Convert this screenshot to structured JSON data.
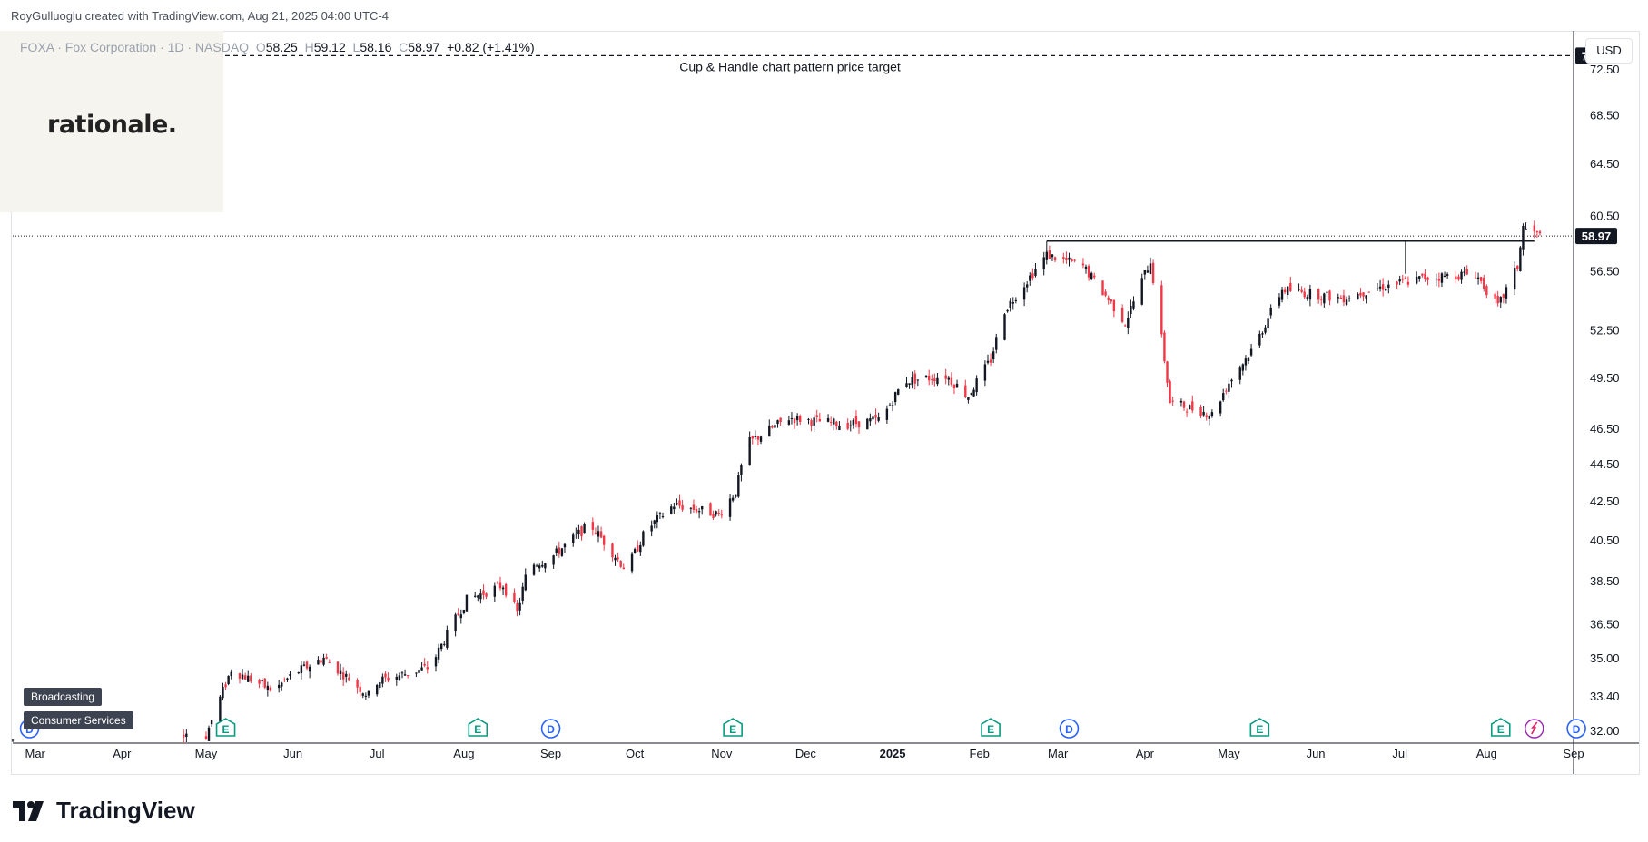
{
  "header": {
    "caption": "RoyGulluoglu created with TradingView.com, Aug 21, 2025 04:00 UTC-4"
  },
  "legend": {
    "symbol_line": "FOXA · Fox Corporation · 1D · NASDAQ",
    "open_label": "O",
    "open": "58.25",
    "high_label": "H",
    "high": "59.12",
    "low_label": "L",
    "low": "58.16",
    "close_label": "C",
    "close": "58.97",
    "change": "+0.82 (+1.41%)"
  },
  "logo": {
    "text": "rationale."
  },
  "currency_button": "USD",
  "industry_tags": [
    "Broadcasting",
    "Consumer Services"
  ],
  "brand": {
    "name": "TradingView"
  },
  "colors": {
    "up": "#131722",
    "down": "#f23645",
    "line": "#131722",
    "target_badge": "#131722"
  },
  "chart_data": {
    "type": "candlestick",
    "symbol": "FOXA",
    "interval": "1D",
    "y_axis": {
      "ticks": [
        "32.00",
        "33.40",
        "35.00",
        "36.50",
        "38.50",
        "40.50",
        "42.50",
        "44.50",
        "46.50",
        "49.50",
        "52.50",
        "56.50",
        "60.50",
        "64.50",
        "68.50",
        "72.50"
      ],
      "scale": "log",
      "range": [
        31.5,
        76
      ]
    },
    "x_axis": {
      "ticks": [
        {
          "label": "Mar",
          "date": "2024-03-01"
        },
        {
          "label": "Apr",
          "date": "2024-04-01"
        },
        {
          "label": "May",
          "date": "2024-05-01"
        },
        {
          "label": "Jun",
          "date": "2024-06-01"
        },
        {
          "label": "Jul",
          "date": "2024-07-01"
        },
        {
          "label": "Aug",
          "date": "2024-08-01"
        },
        {
          "label": "Sep",
          "date": "2024-09-01"
        },
        {
          "label": "Oct",
          "date": "2024-10-01"
        },
        {
          "label": "Nov",
          "date": "2024-11-01"
        },
        {
          "label": "Dec",
          "date": "2024-12-01"
        },
        {
          "label": "2025",
          "date": "2025-01-01"
        },
        {
          "label": "Feb",
          "date": "2025-02-01"
        },
        {
          "label": "Mar",
          "date": "2025-03-01"
        },
        {
          "label": "Apr",
          "date": "2025-04-01"
        },
        {
          "label": "May",
          "date": "2025-05-01"
        },
        {
          "label": "Jun",
          "date": "2025-06-01"
        },
        {
          "label": "Jul",
          "date": "2025-07-01"
        },
        {
          "label": "Aug",
          "date": "2025-08-01"
        },
        {
          "label": "Sep",
          "date": "2025-09-01"
        }
      ],
      "range": [
        "2024-02-22",
        "2025-09-01"
      ]
    },
    "price_path": [
      {
        "date": "2024-03-01",
        "price": 31.6
      },
      {
        "date": "2024-04-01",
        "price": 31.2
      },
      {
        "date": "2024-04-20",
        "price": 31.6
      },
      {
        "date": "2024-05-01",
        "price": 31.8
      },
      {
        "date": "2024-05-10",
        "price": 34.5
      },
      {
        "date": "2024-05-25",
        "price": 33.6
      },
      {
        "date": "2024-06-01",
        "price": 34.3
      },
      {
        "date": "2024-06-12",
        "price": 35.0
      },
      {
        "date": "2024-06-28",
        "price": 33.4
      },
      {
        "date": "2024-07-01",
        "price": 34.0
      },
      {
        "date": "2024-07-20",
        "price": 34.6
      },
      {
        "date": "2024-07-28",
        "price": 36.5
      },
      {
        "date": "2024-08-02",
        "price": 37.6
      },
      {
        "date": "2024-08-15",
        "price": 38.3
      },
      {
        "date": "2024-08-20",
        "price": 37.0
      },
      {
        "date": "2024-08-24",
        "price": 39.2
      },
      {
        "date": "2024-09-01",
        "price": 39.6
      },
      {
        "date": "2024-09-15",
        "price": 41.3
      },
      {
        "date": "2024-09-28",
        "price": 39.0
      },
      {
        "date": "2024-10-05",
        "price": 41.0
      },
      {
        "date": "2024-10-15",
        "price": 42.3
      },
      {
        "date": "2024-10-31",
        "price": 41.8
      },
      {
        "date": "2024-11-06",
        "price": 43.0
      },
      {
        "date": "2024-11-10",
        "price": 45.6
      },
      {
        "date": "2024-11-25",
        "price": 47.1
      },
      {
        "date": "2024-12-15",
        "price": 46.7
      },
      {
        "date": "2024-12-28",
        "price": 47.0
      },
      {
        "date": "2025-01-05",
        "price": 49.3
      },
      {
        "date": "2025-01-20",
        "price": 49.6
      },
      {
        "date": "2025-01-28",
        "price": 48.4
      },
      {
        "date": "2025-02-05",
        "price": 50.6
      },
      {
        "date": "2025-02-10",
        "price": 53.8
      },
      {
        "date": "2025-02-25",
        "price": 57.6
      },
      {
        "date": "2025-03-10",
        "price": 56.8
      },
      {
        "date": "2025-03-25",
        "price": 53.0
      },
      {
        "date": "2025-04-03",
        "price": 57.2
      },
      {
        "date": "2025-04-10",
        "price": 48.0
      },
      {
        "date": "2025-04-25",
        "price": 47.3
      },
      {
        "date": "2025-05-01",
        "price": 49.2
      },
      {
        "date": "2025-05-10",
        "price": 51.4
      },
      {
        "date": "2025-05-20",
        "price": 55.2
      },
      {
        "date": "2025-06-10",
        "price": 54.6
      },
      {
        "date": "2025-06-25",
        "price": 55.4
      },
      {
        "date": "2025-07-10",
        "price": 56.0
      },
      {
        "date": "2025-07-28",
        "price": 56.3
      },
      {
        "date": "2025-08-05",
        "price": 54.0
      },
      {
        "date": "2025-08-12",
        "price": 56.8
      },
      {
        "date": "2025-08-14",
        "price": 59.6
      },
      {
        "date": "2025-08-20",
        "price": 58.97
      }
    ],
    "resistance_line": {
      "price": 58.6,
      "from": "2025-02-25",
      "to": "2025-08-18"
    },
    "price_target": {
      "price": 73.7,
      "label": "73.70",
      "annotation": "Cup & Handle chart pattern price target"
    },
    "last_price": {
      "price": 58.97,
      "label": "58.97"
    },
    "events": [
      {
        "type": "D",
        "date": "2024-02-28"
      },
      {
        "type": "E",
        "date": "2024-05-08"
      },
      {
        "type": "E",
        "date": "2024-08-06"
      },
      {
        "type": "D",
        "date": "2024-09-01"
      },
      {
        "type": "E",
        "date": "2024-11-05"
      },
      {
        "type": "E",
        "date": "2025-02-05"
      },
      {
        "type": "D",
        "date": "2025-03-05"
      },
      {
        "type": "E",
        "date": "2025-05-12"
      },
      {
        "type": "E",
        "date": "2025-08-06"
      },
      {
        "type": "D",
        "date": "2025-09-02"
      }
    ]
  }
}
